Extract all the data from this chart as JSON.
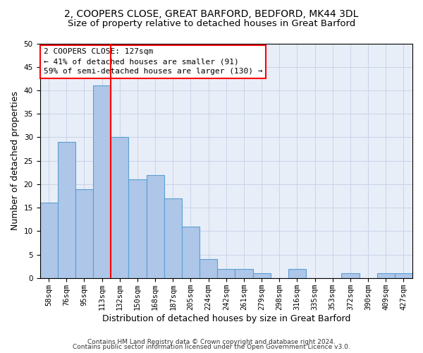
{
  "title1": "2, COOPERS CLOSE, GREAT BARFORD, BEDFORD, MK44 3DL",
  "title2": "Size of property relative to detached houses in Great Barford",
  "xlabel": "Distribution of detached houses by size in Great Barford",
  "ylabel": "Number of detached properties",
  "categories": [
    "58sqm",
    "76sqm",
    "95sqm",
    "113sqm",
    "132sqm",
    "150sqm",
    "168sqm",
    "187sqm",
    "205sqm",
    "224sqm",
    "242sqm",
    "261sqm",
    "279sqm",
    "298sqm",
    "316sqm",
    "335sqm",
    "353sqm",
    "372sqm",
    "390sqm",
    "409sqm",
    "427sqm"
  ],
  "values": [
    16,
    29,
    19,
    41,
    30,
    21,
    22,
    17,
    11,
    4,
    2,
    2,
    1,
    0,
    2,
    0,
    0,
    1,
    0,
    1,
    1
  ],
  "bar_color": "#aec6e8",
  "bar_edgecolor": "#5a9fd4",
  "bar_linewidth": 0.8,
  "vline_position": 3.5,
  "vline_color": "red",
  "vline_linewidth": 1.5,
  "annotation_line1": "2 COOPERS CLOSE: 127sqm",
  "annotation_line2": "← 41% of detached houses are smaller (91)",
  "annotation_line3": "59% of semi-detached houses are larger (130) →",
  "ylim": [
    0,
    50
  ],
  "yticks": [
    0,
    5,
    10,
    15,
    20,
    25,
    30,
    35,
    40,
    45,
    50
  ],
  "grid_color": "#c8d4e8",
  "background_color": "#e8eef8",
  "footnote1": "Contains HM Land Registry data © Crown copyright and database right 2024.",
  "footnote2": "Contains public sector information licensed under the Open Government Licence v3.0.",
  "title1_fontsize": 10,
  "title2_fontsize": 9.5,
  "xlabel_fontsize": 9,
  "ylabel_fontsize": 9,
  "tick_fontsize": 7.5,
  "annotation_fontsize": 8,
  "footnote_fontsize": 6.5
}
